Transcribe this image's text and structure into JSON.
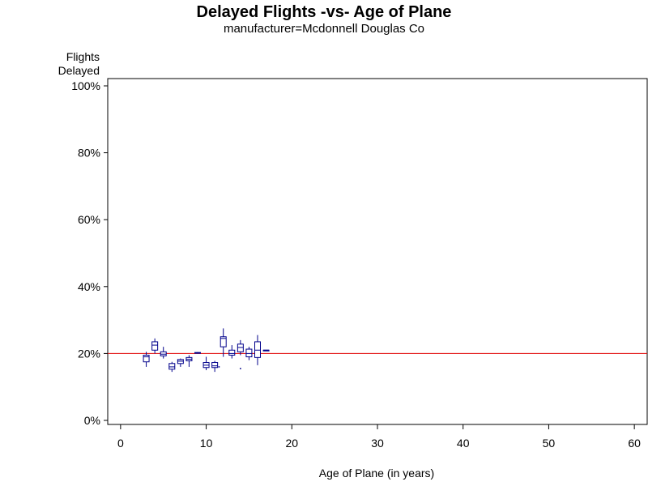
{
  "chart_data": {
    "type": "box",
    "title": "Delayed Flights -vs- Age of Plane",
    "subtitle": "manufacturer=Mcdonnell Douglas Co",
    "ylabel_lines": [
      "Flights",
      "Delayed"
    ],
    "xlabel": "Age of Plane (in years)",
    "xlim": [
      -1.5,
      61.5
    ],
    "ylim": [
      0,
      100
    ],
    "xticks": [
      0,
      10,
      20,
      30,
      40,
      50,
      60
    ],
    "yticks": [
      0,
      20,
      40,
      60,
      80,
      100
    ],
    "ytick_labels": [
      "0%",
      "20%",
      "40%",
      "60%",
      "80%",
      "100%"
    ],
    "reference_line": {
      "value": 20,
      "color": "#e00000"
    },
    "box_color": "#00008b",
    "boxes": [
      {
        "x": 3,
        "min": 16.0,
        "q1": 17.5,
        "median": 19.0,
        "q3": 19.5,
        "max": 20.5
      },
      {
        "x": 4,
        "min": 20.0,
        "q1": 21.0,
        "median": 22.5,
        "q3": 23.5,
        "max": 24.5
      },
      {
        "x": 5,
        "min": 18.5,
        "q1": 19.3,
        "median": 19.8,
        "q3": 20.5,
        "max": 22.0
      },
      {
        "x": 6,
        "min": 14.5,
        "q1": 15.3,
        "median": 16.0,
        "q3": 17.0,
        "max": 17.5
      },
      {
        "x": 7,
        "min": 16.0,
        "q1": 17.0,
        "median": 17.7,
        "q3": 18.2,
        "max": 18.5
      },
      {
        "x": 8,
        "min": 16.0,
        "q1": 17.8,
        "median": 18.3,
        "q3": 18.8,
        "max": 19.5
      },
      {
        "x": 9,
        "min": 20.0,
        "q1": 20.1,
        "median": 20.2,
        "q3": 20.3,
        "max": 20.4
      },
      {
        "x": 10,
        "min": 15.0,
        "q1": 15.8,
        "median": 16.5,
        "q3": 17.3,
        "max": 19.0
      },
      {
        "x": 11,
        "min": 14.5,
        "q1": 15.8,
        "median": 16.3,
        "q3": 17.3,
        "max": 17.8
      },
      {
        "x": 12,
        "min": 19.0,
        "q1": 22.0,
        "median": 24.5,
        "q3": 25.0,
        "max": 27.5
      },
      {
        "x": 13,
        "min": 18.5,
        "q1": 19.5,
        "median": 20.0,
        "q3": 21.0,
        "max": 22.5
      },
      {
        "x": 14,
        "min": 19.5,
        "q1": 20.5,
        "median": 21.8,
        "q3": 22.8,
        "max": 24.0
      },
      {
        "x": 15,
        "min": 18.0,
        "q1": 19.0,
        "median": 20.0,
        "q3": 21.3,
        "max": 22.0
      },
      {
        "x": 16,
        "min": 16.5,
        "q1": 18.8,
        "median": 21.0,
        "q3": 23.5,
        "max": 25.5
      },
      {
        "x": 17,
        "min": 21.0,
        "q1": 21.0,
        "median": 21.0,
        "q3": 21.0,
        "max": 21.0
      }
    ],
    "outliers": [
      {
        "x": 11.5,
        "y": 16.0
      },
      {
        "x": 14,
        "y": 15.5
      }
    ]
  }
}
